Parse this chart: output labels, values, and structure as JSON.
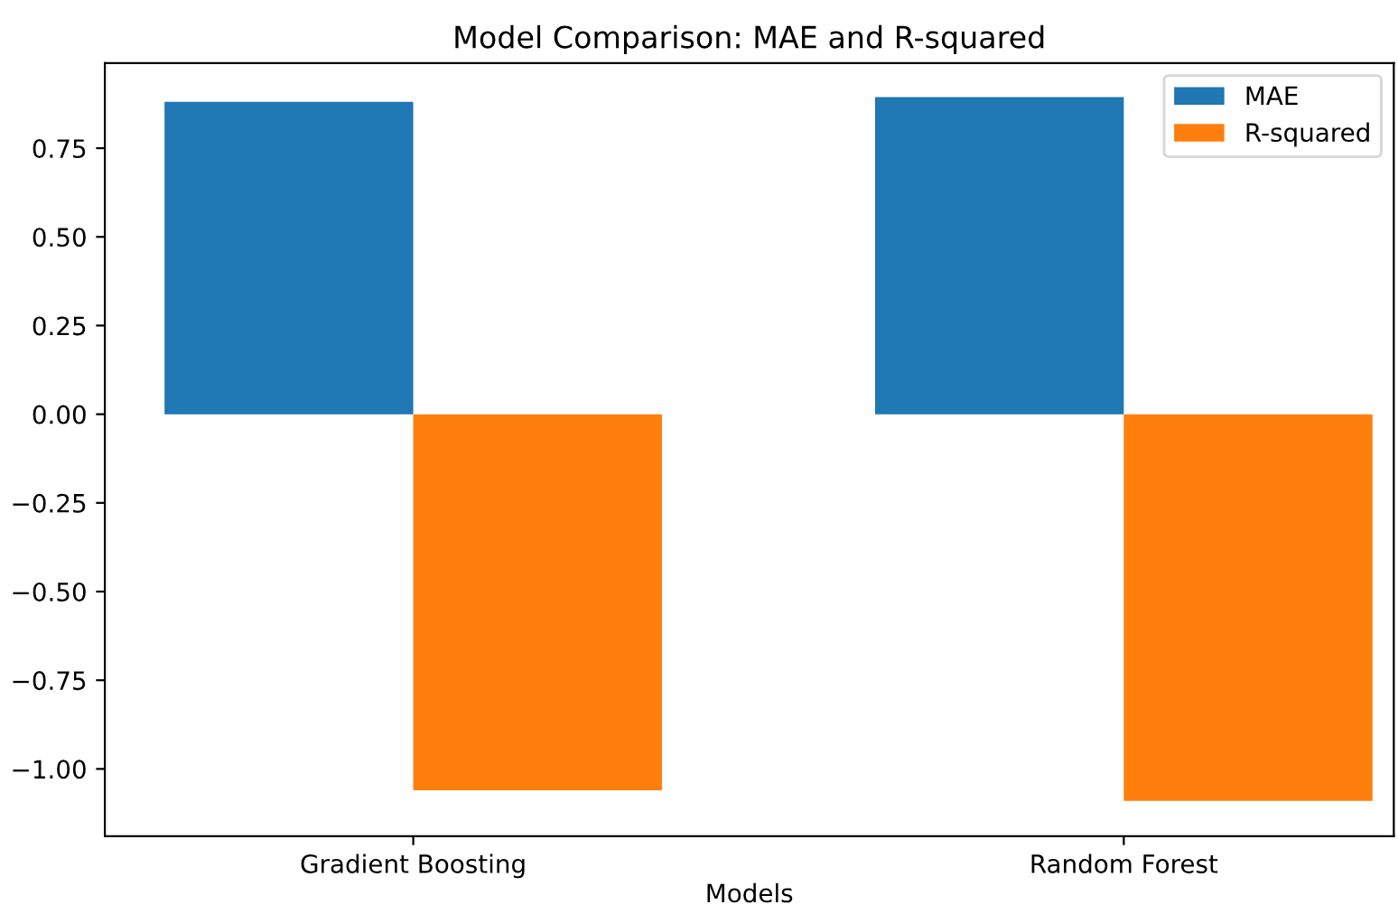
{
  "chart_data": {
    "type": "bar",
    "title": "Model Comparison: MAE and R-squared",
    "xlabel": "Models",
    "categories": [
      "Gradient Boosting",
      "Random Forest"
    ],
    "series": [
      {
        "name": "MAE",
        "color": "#1f77b4",
        "values": [
          0.881,
          0.894
        ]
      },
      {
        "name": "R-squared",
        "color": "#ff7f0e",
        "values": [
          -1.06,
          -1.09
        ]
      }
    ],
    "ylim": [
      -1.19,
      0.99
    ],
    "yticks": [
      {
        "value": -1.0,
        "label": "−1.00"
      },
      {
        "value": -0.75,
        "label": "−0.75"
      },
      {
        "value": -0.5,
        "label": "−0.50"
      },
      {
        "value": -0.25,
        "label": "−0.25"
      },
      {
        "value": 0,
        "label": "0.00"
      },
      {
        "value": 0.25,
        "label": "0.25"
      },
      {
        "value": 0.5,
        "label": "0.50"
      },
      {
        "value": 0.75,
        "label": "0.75"
      }
    ],
    "legend": "top right"
  }
}
